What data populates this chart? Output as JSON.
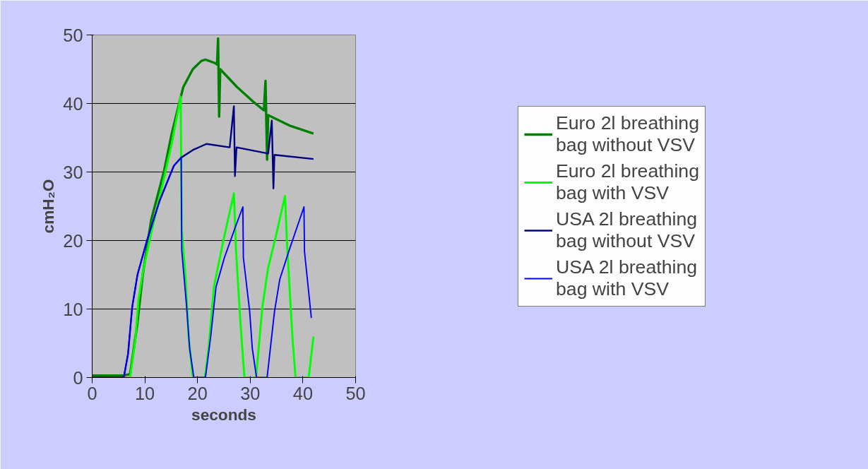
{
  "chart_data": {
    "type": "line",
    "xlabel": "seconds",
    "ylabel": "cmH₂O",
    "xlim": [
      0,
      50
    ],
    "xticks": [
      0,
      10,
      20,
      30,
      40,
      50
    ],
    "ylim": [
      0,
      50
    ],
    "yticks": [
      0,
      10,
      20,
      30,
      40,
      50
    ],
    "grid": "y",
    "legend": "right",
    "line_style": "solid",
    "marker": "none",
    "series": [
      {
        "name": "Euro 2l breathing bag without VSV",
        "color": "#008000",
        "x": [
          0,
          3,
          6,
          7.2,
          8.6,
          9.6,
          11.2,
          13.6,
          15.1,
          16.7,
          17.3,
          19.1,
          20.7,
          21.5,
          23.3,
          23.7,
          23.9,
          24.1,
          24.3,
          27.5,
          30.5,
          32.6,
          32.9,
          33.2,
          33.4,
          37.4,
          42.0
        ],
        "values": [
          0.3,
          0.3,
          0.3,
          0.5,
          8,
          15,
          23,
          30,
          35.6,
          40.6,
          42.4,
          45,
          46.2,
          46.4,
          45.9,
          45.7,
          49.5,
          38.1,
          45.0,
          42.4,
          40.3,
          39.0,
          43.3,
          31.8,
          38.3,
          36.8,
          35.6
        ]
      },
      {
        "name": "Euro 2l breathing bag with VSV",
        "color": "#00ff00",
        "x": [
          0,
          7.2,
          8.2,
          8.8,
          9.6,
          11.2,
          13.2,
          15.1,
          16.8,
          17.0,
          17.7,
          18.3,
          19.1,
          21.4,
          22.1,
          23.1,
          24.9,
          26.9,
          27.3,
          28.1,
          28.9,
          31.1,
          32.3,
          33.4,
          34.8,
          36.6,
          37.0,
          38.0,
          38.6,
          41.1,
          42.0
        ],
        "values": [
          0,
          0,
          5.6,
          11.4,
          15.3,
          21.1,
          27.6,
          34.1,
          41,
          21.5,
          15,
          6,
          0,
          0,
          4.3,
          13.2,
          20.0,
          26.9,
          18.6,
          8.5,
          0,
          0,
          10.3,
          16.0,
          20.4,
          26.5,
          19.3,
          6.0,
          0,
          0,
          6.0
        ]
      },
      {
        "name": "USA 2l breathing bag without VSV",
        "color": "#000080",
        "x": [
          0,
          6.0,
          6.8,
          7.6,
          8.6,
          10.4,
          12.8,
          15.5,
          16.9,
          19.1,
          21.7,
          26.1,
          26.9,
          27.1,
          27.4,
          33.4,
          34.1,
          34.4,
          34.6,
          42.0
        ],
        "values": [
          0,
          0,
          3.4,
          10.3,
          15,
          20,
          25.8,
          30.9,
          32.1,
          33.2,
          34.1,
          33.6,
          39.6,
          29.4,
          33.6,
          32.7,
          37.5,
          27.6,
          32.5,
          31.9
        ]
      },
      {
        "name": "USA 2l breathing bag with VSV",
        "color": "#0000ff",
        "x": [
          0,
          6.0,
          6.8,
          7.6,
          8.6,
          10.4,
          12.8,
          15.5,
          16.9,
          17.0,
          17.9,
          18.5,
          19.3,
          21.5,
          22.5,
          23.5,
          25.1,
          27.1,
          28.6,
          28.7,
          29.9,
          30.4,
          31.2,
          33.2,
          34.6,
          35.6,
          37.4,
          40.2,
          40.3,
          41.6
        ],
        "values": [
          0,
          0,
          3.4,
          10.3,
          15,
          20,
          25.8,
          30.9,
          32.1,
          18.6,
          10.6,
          4.2,
          0,
          0,
          6.0,
          13.2,
          17.5,
          21.8,
          24.9,
          17.5,
          9.6,
          4.2,
          0,
          0,
          9.6,
          14.3,
          18.6,
          24.9,
          18.4,
          8.7
        ]
      }
    ]
  }
}
